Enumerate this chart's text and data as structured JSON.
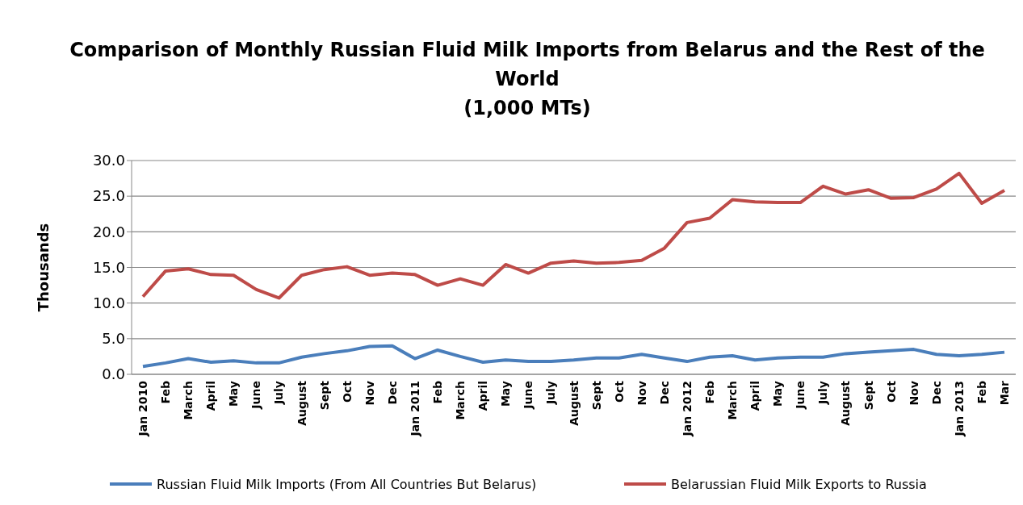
{
  "chart_data": {
    "type": "line",
    "title": "Comparison of Monthly Russian Fluid Milk Imports from Belarus and the Rest of the World\n(1,000 MTs)",
    "ylabel": "Thousands",
    "categories": [
      "Jan 2010",
      "Feb",
      "March",
      "April",
      "May",
      "June",
      "July",
      "August",
      "Sept",
      "Oct",
      "Nov",
      "Dec",
      "Jan 2011",
      "Feb",
      "March",
      "April",
      "May",
      "June",
      "July",
      "August",
      "Sept",
      "Oct",
      "Nov",
      "Dec",
      "Jan 2012",
      "Feb",
      "March",
      "April",
      "May",
      "June",
      "July",
      "August",
      "Sept",
      "Oct",
      "Nov",
      "Dec",
      "Jan 2013",
      "Feb",
      "Mar"
    ],
    "series": [
      {
        "name": "Russian Fluid Milk Imports (From All Countries But Belarus)",
        "color": "#4a7ebb",
        "values": [
          1.1,
          1.6,
          2.2,
          1.7,
          1.9,
          1.6,
          1.6,
          2.4,
          2.9,
          3.3,
          3.9,
          4.0,
          2.2,
          3.4,
          2.5,
          1.7,
          2.0,
          1.8,
          1.8,
          2.0,
          2.3,
          2.3,
          2.8,
          2.3,
          1.8,
          2.4,
          2.6,
          2.0,
          2.3,
          2.4,
          2.4,
          2.9,
          3.1,
          3.3,
          3.5,
          2.8,
          2.6,
          2.8,
          3.1
        ]
      },
      {
        "name": "Belarussian Fluid Milk Exports to Russia",
        "color": "#be4b48",
        "values": [
          10.9,
          14.5,
          14.8,
          14.0,
          13.9,
          11.9,
          10.7,
          13.9,
          14.7,
          15.1,
          13.9,
          14.2,
          14.0,
          12.5,
          13.4,
          12.5,
          15.4,
          14.2,
          15.6,
          15.9,
          15.6,
          15.7,
          16.0,
          17.7,
          21.3,
          21.9,
          24.5,
          24.2,
          24.1,
          24.1,
          26.4,
          25.3,
          25.9,
          24.7,
          24.8,
          26.0,
          28.2,
          24.0,
          25.8
        ]
      }
    ],
    "ylim": [
      0,
      30
    ],
    "yticks": [
      {
        "value": 0,
        "label": "0.0"
      },
      {
        "value": 5,
        "label": "5.0"
      },
      {
        "value": 10,
        "label": "10.0"
      },
      {
        "value": 15,
        "label": "15.0"
      },
      {
        "value": 20,
        "label": "20.0"
      },
      {
        "value": 25,
        "label": "25.0"
      },
      {
        "value": 30,
        "label": "30.0"
      }
    ],
    "grid": "y",
    "legend": "bottom",
    "marker": "none",
    "line_style": "solid"
  }
}
